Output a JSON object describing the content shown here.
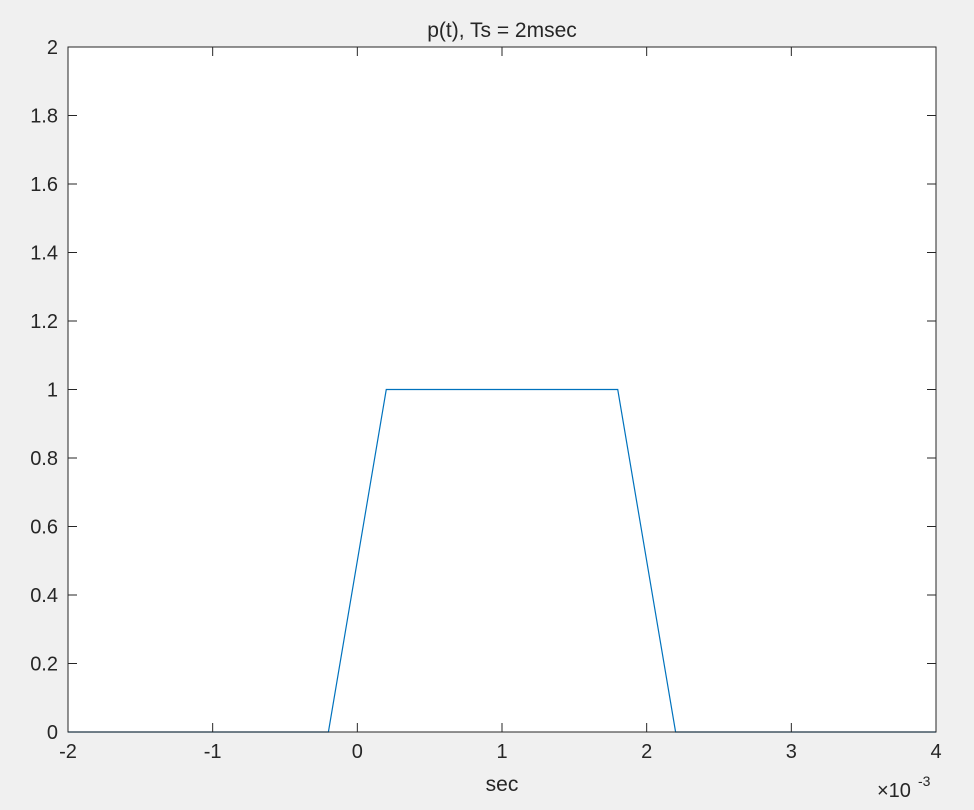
{
  "chart_data": {
    "type": "line",
    "title": "p(t), Ts = 2msec",
    "xlabel": "sec",
    "ylabel": "",
    "x_exponent_label": {
      "base": "×10",
      "exponent": "-3"
    },
    "xlim": [
      -2,
      4
    ],
    "ylim": [
      0,
      2
    ],
    "x_ticks": [
      -2,
      -1,
      0,
      1,
      2,
      3,
      4
    ],
    "x_tick_labels": [
      "-2",
      "-1",
      "0",
      "1",
      "2",
      "3",
      "4"
    ],
    "y_ticks": [
      0,
      0.2,
      0.4,
      0.6,
      0.8,
      1,
      1.2,
      1.4,
      1.6,
      1.8,
      2
    ],
    "y_tick_labels": [
      "0",
      "0.2",
      "0.4",
      "0.6",
      "0.8",
      "1",
      "1.2",
      "1.4",
      "1.6",
      "1.8",
      "2"
    ],
    "grid": false,
    "series": [
      {
        "color": "#0072bd",
        "x": [
          -2,
          -0.2,
          0.2,
          1.8,
          2.2,
          4
        ],
        "y": [
          0,
          0,
          1,
          1,
          0,
          0
        ]
      }
    ]
  }
}
